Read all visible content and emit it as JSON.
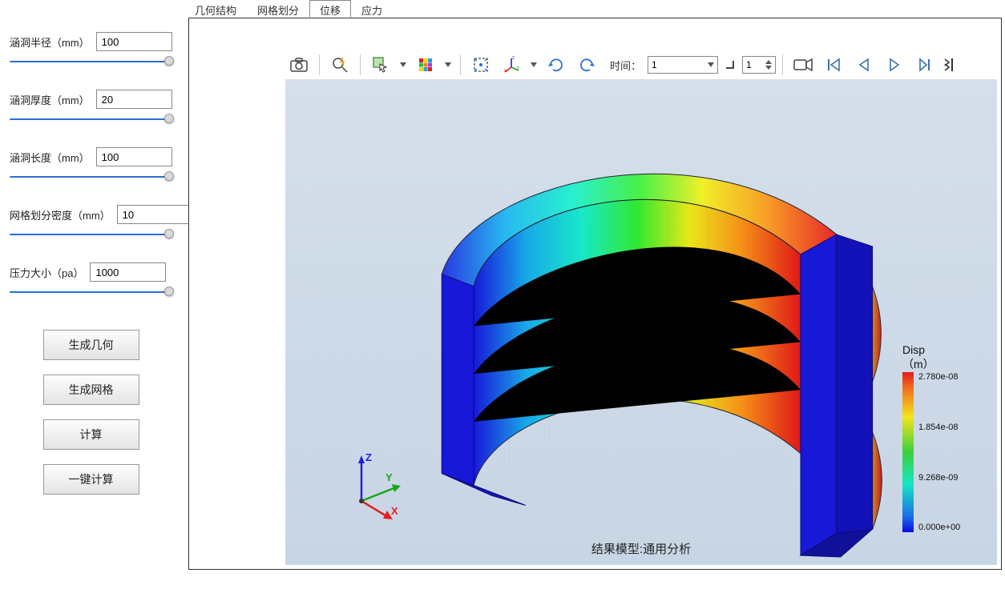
{
  "tabs": {
    "geom": "几何结构",
    "mesh": "网格划分",
    "disp": "位移",
    "stress": "应力",
    "active": "disp"
  },
  "params": {
    "radius": {
      "label": "涵洞半径（mm）",
      "value": "100",
      "thumb_pct": 98
    },
    "thickness": {
      "label": "涵洞厚度（mm）",
      "value": "20",
      "thumb_pct": 98
    },
    "length": {
      "label": "涵洞长度（mm）",
      "value": "100",
      "thumb_pct": 98
    },
    "meshsize": {
      "label": "网格划分密度（mm）",
      "value": "10",
      "thumb_pct": 98
    },
    "pressure": {
      "label": "压力大小（pa）",
      "value": "1000",
      "thumb_pct": 98
    }
  },
  "buttons": {
    "gen_geom": "生成几何",
    "gen_mesh": "生成网格",
    "compute": "计算",
    "one_click": "一键计算"
  },
  "toolbar": {
    "time_label": "时间：",
    "time_value": "1",
    "step_value": "1"
  },
  "legend": {
    "title1": "Disp",
    "title2": "（m）",
    "ticks": [
      "2.780e-08",
      "1.854e-08",
      "9.268e-09",
      "0.000e+00"
    ]
  },
  "caption": "结果模型:通用分析",
  "triad": {
    "x": "X",
    "y": "Y",
    "z": "Z"
  },
  "colors": {
    "slider_active": "#2a6fd6",
    "view_bg_top": "#d5dfeb",
    "view_bg_bot": "#c8d5e4",
    "axis_x": "#e02020",
    "axis_y": "#1aa51a",
    "axis_z": "#2020e0"
  },
  "model": {
    "type": "3d_contour_half_ring",
    "gradient_stops": [
      "#1818d8",
      "#18a8e8",
      "#18e8c8",
      "#30e830",
      "#e8e818",
      "#f59018",
      "#e01818"
    ],
    "face_color": "#1818d8"
  }
}
